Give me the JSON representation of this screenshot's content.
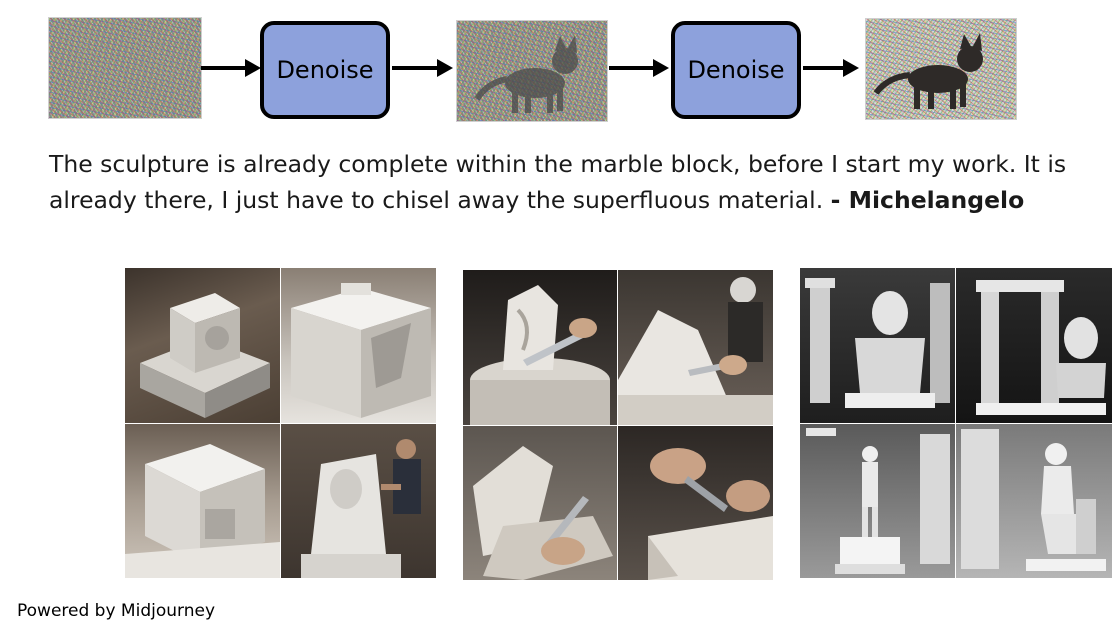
{
  "pipeline": {
    "steps": [
      {
        "kind": "image",
        "icon": "pure-noise-image"
      },
      {
        "kind": "process",
        "label": "Denoise"
      },
      {
        "kind": "image",
        "icon": "noisy-cat-image"
      },
      {
        "kind": "process",
        "label": "Denoise"
      },
      {
        "kind": "image",
        "icon": "clearer-cat-image"
      }
    ]
  },
  "quote": {
    "line1": "The sculpture is already complete within the marble block, before I start my work. It is",
    "line2": "already there, I just have to chisel away the superfluous material.",
    "author": "- Michelangelo"
  },
  "galleries": [
    {
      "icon": "marble-block-carving-grid",
      "tiles": [
        "marble-cube-on-base",
        "partially-carved-block",
        "carved-white-cube",
        "sculptor-carving-bust"
      ]
    },
    {
      "icon": "chisel-on-stone-grid",
      "tiles": [
        "chiseled-stone-relief",
        "worker-chiseling-block",
        "carved-marble-pieces",
        "hands-chiseling-marble"
      ]
    },
    {
      "icon": "classical-statues-grid",
      "tiles": [
        "david-bust-with-columns",
        "bust-in-archway",
        "david-statue-on-pedestal",
        "thinker-style-statue"
      ]
    }
  ],
  "footer": {
    "powered_by": "Powered by Midjourney"
  }
}
